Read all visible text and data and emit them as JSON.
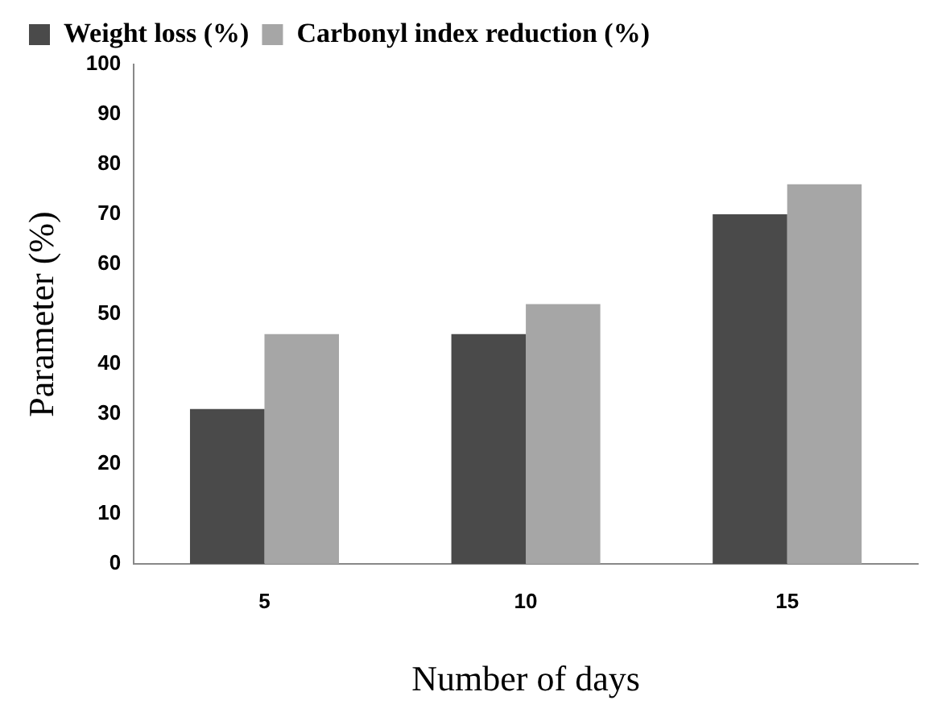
{
  "chart_data": {
    "type": "bar",
    "xlabel": "Number of days",
    "ylabel": "Parameter (%)",
    "categories": [
      "5",
      "10",
      "15"
    ],
    "series": [
      {
        "name": "Weight loss (%)",
        "color": "#4a4a4a",
        "values": [
          31,
          46,
          70
        ]
      },
      {
        "name": "Carbonyl index reduction (%)",
        "color": "#a6a6a6",
        "values": [
          46,
          52,
          76
        ]
      }
    ],
    "ylim": [
      0,
      100
    ],
    "yticks": [
      0,
      10,
      20,
      30,
      40,
      50,
      60,
      70,
      80,
      90,
      100
    ],
    "grid": false,
    "legend": "top left"
  }
}
